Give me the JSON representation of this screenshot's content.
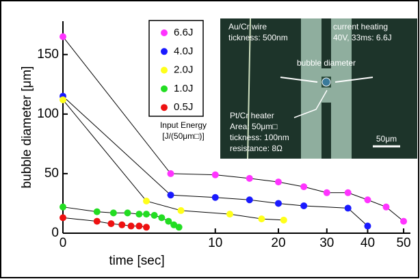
{
  "chart_data": {
    "type": "line",
    "x_label": "time [sec]",
    "y_label": "bubble diameter [μm]",
    "xscale": "sqrt",
    "xlim": [
      0,
      51
    ],
    "ylim": [
      0,
      178
    ],
    "xticks": [
      0,
      10,
      20,
      30,
      40,
      50
    ],
    "yticks": [
      0,
      50,
      100,
      150
    ],
    "legend_title": [
      "Input Energy",
      "[J/(50μm□)]"
    ],
    "series": [
      {
        "name": "6.6J",
        "color": "#ff33ff",
        "x": [
          0,
          5,
          10,
          15,
          20,
          25,
          30,
          35,
          40,
          45,
          50
        ],
        "values": [
          165,
          50,
          49,
          46,
          43,
          39,
          34,
          34,
          28,
          22,
          10
        ]
      },
      {
        "name": "4.0J",
        "color": "#1a1aff",
        "x": [
          0,
          5,
          10,
          15,
          20,
          25,
          35,
          40
        ],
        "values": [
          115,
          32,
          30,
          28,
          25,
          23,
          21,
          6
        ]
      },
      {
        "name": "2.0J",
        "color": "#ffff1a",
        "x": [
          0,
          3,
          6,
          12,
          17,
          21
        ],
        "values": [
          112,
          27,
          19,
          16,
          12,
          11
        ]
      },
      {
        "name": "1.0J",
        "color": "#22dd22",
        "x": [
          0,
          0.5,
          1.1,
          1.8,
          2.5,
          3,
          3.6,
          4.2,
          4.8,
          5.3,
          5.8
        ],
        "values": [
          22,
          18,
          17,
          17,
          16,
          16,
          15,
          13,
          10,
          7,
          5
        ]
      },
      {
        "name": "0.5J",
        "color": "#ee1111",
        "x": [
          0,
          0.5,
          1,
          1.5,
          2,
          2.5,
          3
        ],
        "values": [
          13,
          10,
          8,
          7,
          6,
          6,
          5
        ]
      }
    ],
    "annotations": [
      "Au/Cr wire",
      "tickness: 500nm",
      "current heating",
      "40V, 33ms: 6.6J",
      "bubble diameter",
      "Pt/Cr heater",
      "Area: 50μm□",
      "tickness: 100nm",
      "resistance: 8Ω",
      "50μm"
    ]
  }
}
